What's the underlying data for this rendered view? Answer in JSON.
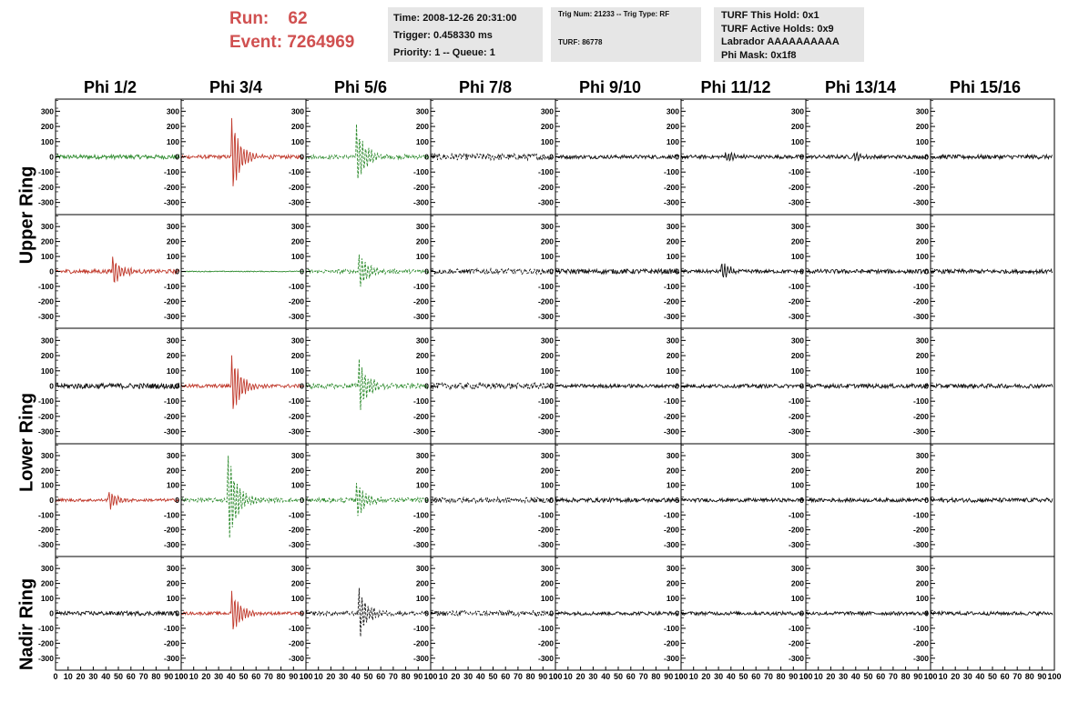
{
  "header": {
    "run_label": "Run:",
    "run_value": "62",
    "event_label": "Event:",
    "event_value": "7264969",
    "time": "Time: 2008-12-26 20:31:00",
    "trigger": "Trigger: 0.458330 ms",
    "priority": "Priority: 1 -- Queue: 1",
    "trig_num": "Trig Num: 21233 -- Trig Type: RF",
    "turf": "TURF: 86778",
    "turf_hold": "TURF This Hold: 0x1",
    "turf_active": "TURF Active Holds: 0x9",
    "labrador": "Labrador AAAAAAAAAA",
    "phi_mask": "Phi Mask: 0x1f8"
  },
  "columns": [
    "Phi 1/2",
    "Phi 3/4",
    "Phi 5/6",
    "Phi 7/8",
    "Phi 9/10",
    "Phi 11/12",
    "Phi 13/14",
    "Phi 15/16"
  ],
  "rings": [
    "Upper Ring",
    "Lower Ring",
    "Nadir Ring"
  ],
  "colors": {
    "red": "#c0392b",
    "green": "#2e8b2e",
    "black": "#111111"
  },
  "chart_data": {
    "type": "line",
    "xlim": [
      0,
      100
    ],
    "ylim": [
      -380,
      380
    ],
    "x_ticks": [
      "0",
      "10",
      "20",
      "30",
      "40",
      "50",
      "60",
      "70",
      "80",
      "90",
      "100"
    ],
    "y_ticks": [
      300,
      200,
      100,
      0,
      -100,
      -200,
      -300
    ],
    "rows": [
      {
        "ring": "Upper Ring",
        "panels": [
          {
            "color": "green",
            "dashed": false,
            "pulse_at": 0,
            "pulse_amp": 0,
            "noise": 14
          },
          {
            "color": "red",
            "dashed": false,
            "pulse_at": 40,
            "pulse_amp": 280,
            "noise": 12
          },
          {
            "color": "green",
            "dashed": true,
            "pulse_at": 40,
            "pulse_amp": 230,
            "noise": 14
          },
          {
            "color": "black",
            "dashed": true,
            "pulse_at": 0,
            "pulse_amp": 0,
            "noise": 22
          },
          {
            "color": "black",
            "dashed": false,
            "pulse_at": 0,
            "pulse_amp": 0,
            "noise": 12
          },
          {
            "color": "black",
            "dashed": false,
            "pulse_at": 35,
            "pulse_amp": 40,
            "noise": 12
          },
          {
            "color": "black",
            "dashed": false,
            "pulse_at": 38,
            "pulse_amp": 30,
            "noise": 12
          },
          {
            "color": "black",
            "dashed": false,
            "pulse_at": 0,
            "pulse_amp": 0,
            "noise": 14
          }
        ]
      },
      {
        "ring": "Upper Ring",
        "panels": [
          {
            "color": "red",
            "dashed": false,
            "pulse_at": 45,
            "pulse_amp": 110,
            "noise": 14
          },
          {
            "color": "green",
            "dashed": false,
            "pulse_at": 0,
            "pulse_amp": 0,
            "noise": 3
          },
          {
            "color": "green",
            "dashed": true,
            "pulse_at": 42,
            "pulse_amp": 140,
            "noise": 14
          },
          {
            "color": "black",
            "dashed": true,
            "pulse_at": 0,
            "pulse_amp": 0,
            "noise": 18
          },
          {
            "color": "black",
            "dashed": false,
            "pulse_at": 0,
            "pulse_amp": 0,
            "noise": 16
          },
          {
            "color": "black",
            "dashed": false,
            "pulse_at": 32,
            "pulse_amp": 70,
            "noise": 12
          },
          {
            "color": "black",
            "dashed": false,
            "pulse_at": 0,
            "pulse_amp": 0,
            "noise": 14
          },
          {
            "color": "black",
            "dashed": false,
            "pulse_at": 0,
            "pulse_amp": 0,
            "noise": 14
          }
        ]
      },
      {
        "ring": "Lower Ring",
        "panels": [
          {
            "color": "black",
            "dashed": false,
            "pulse_at": 0,
            "pulse_amp": 0,
            "noise": 18
          },
          {
            "color": "red",
            "dashed": false,
            "pulse_at": 40,
            "pulse_amp": 230,
            "noise": 12
          },
          {
            "color": "green",
            "dashed": true,
            "pulse_at": 42,
            "pulse_amp": 190,
            "noise": 16
          },
          {
            "color": "black",
            "dashed": true,
            "pulse_at": 0,
            "pulse_amp": 0,
            "noise": 20
          },
          {
            "color": "black",
            "dashed": false,
            "pulse_at": 0,
            "pulse_amp": 0,
            "noise": 12
          },
          {
            "color": "black",
            "dashed": false,
            "pulse_at": 0,
            "pulse_amp": 0,
            "noise": 12
          },
          {
            "color": "black",
            "dashed": false,
            "pulse_at": 0,
            "pulse_amp": 0,
            "noise": 14
          },
          {
            "color": "black",
            "dashed": false,
            "pulse_at": 0,
            "pulse_amp": 0,
            "noise": 14
          }
        ]
      },
      {
        "ring": "Lower Ring",
        "panels": [
          {
            "color": "red",
            "dashed": false,
            "pulse_at": 42,
            "pulse_amp": 70,
            "noise": 10
          },
          {
            "color": "green",
            "dashed": true,
            "pulse_at": 37,
            "pulse_amp": 350,
            "noise": 14
          },
          {
            "color": "green",
            "dashed": true,
            "pulse_at": 40,
            "pulse_amp": 140,
            "noise": 16
          },
          {
            "color": "black",
            "dashed": true,
            "pulse_at": 0,
            "pulse_amp": 0,
            "noise": 18
          },
          {
            "color": "black",
            "dashed": false,
            "pulse_at": 0,
            "pulse_amp": 0,
            "noise": 14
          },
          {
            "color": "black",
            "dashed": false,
            "pulse_at": 0,
            "pulse_amp": 0,
            "noise": 12
          },
          {
            "color": "black",
            "dashed": false,
            "pulse_at": 0,
            "pulse_amp": 0,
            "noise": 12
          },
          {
            "color": "black",
            "dashed": false,
            "pulse_at": 0,
            "pulse_amp": 0,
            "noise": 14
          }
        ]
      },
      {
        "ring": "Nadir Ring",
        "panels": [
          {
            "color": "black",
            "dashed": false,
            "pulse_at": 0,
            "pulse_amp": 0,
            "noise": 14
          },
          {
            "color": "red",
            "dashed": false,
            "pulse_at": 40,
            "pulse_amp": 170,
            "noise": 10
          },
          {
            "color": "black",
            "dashed": true,
            "pulse_at": 42,
            "pulse_amp": 190,
            "noise": 14
          },
          {
            "color": "black",
            "dashed": true,
            "pulse_at": 0,
            "pulse_amp": 0,
            "noise": 18
          },
          {
            "color": "black",
            "dashed": false,
            "pulse_at": 0,
            "pulse_amp": 0,
            "noise": 12
          },
          {
            "color": "black",
            "dashed": false,
            "pulse_at": 0,
            "pulse_amp": 0,
            "noise": 12
          },
          {
            "color": "black",
            "dashed": false,
            "pulse_at": 0,
            "pulse_amp": 0,
            "noise": 12
          },
          {
            "color": "black",
            "dashed": false,
            "pulse_at": 0,
            "pulse_amp": 0,
            "noise": 12
          }
        ]
      }
    ]
  }
}
